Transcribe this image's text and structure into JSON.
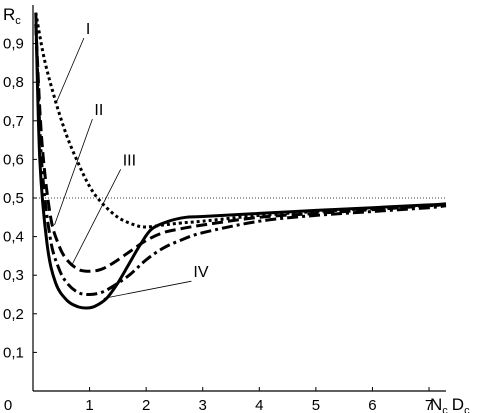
{
  "chart_data": {
    "type": "line",
    "ylabel_main": "R",
    "ylabel_sub": "c",
    "xlabel_parts": [
      {
        "main": "N",
        "sub": "c"
      },
      {
        "main": "D",
        "sub": "c"
      }
    ],
    "xlim": [
      0,
      7.3
    ],
    "ylim": [
      0,
      1.0
    ],
    "x_ticks": [
      {
        "value": 0,
        "label": "0"
      },
      {
        "value": 1,
        "label": "1"
      },
      {
        "value": 2,
        "label": "2"
      },
      {
        "value": 3,
        "label": "3"
      },
      {
        "value": 4,
        "label": "4"
      },
      {
        "value": 5,
        "label": "5"
      },
      {
        "value": 6,
        "label": "6"
      },
      {
        "value": 7,
        "label": "7"
      }
    ],
    "y_ticks": [
      {
        "value": 0.1,
        "label": "0,1"
      },
      {
        "value": 0.2,
        "label": "0,2"
      },
      {
        "value": 0.3,
        "label": "0,3"
      },
      {
        "value": 0.4,
        "label": "0,4"
      },
      {
        "value": 0.5,
        "label": "0,5"
      },
      {
        "value": 0.6,
        "label": "0,6"
      },
      {
        "value": 0.7,
        "label": "0,7"
      },
      {
        "value": 0.8,
        "label": "0,8"
      },
      {
        "value": 0.9,
        "label": "0,9"
      }
    ],
    "reference_line": {
      "y": 0.5,
      "style": "dotted"
    },
    "grid": false,
    "series": [
      {
        "name": "I",
        "dash": "dotted",
        "x": [
          0.05,
          0.2,
          0.4,
          0.6,
          0.8,
          1.0,
          1.2,
          1.5,
          1.8,
          2.0,
          2.3,
          2.6,
          3.0,
          4.0,
          5.0,
          6.0,
          7.0,
          7.3
        ],
        "y": [
          0.98,
          0.86,
          0.75,
          0.66,
          0.59,
          0.53,
          0.49,
          0.45,
          0.43,
          0.425,
          0.43,
          0.435,
          0.44,
          0.455,
          0.465,
          0.473,
          0.48,
          0.483
        ],
        "label_anchor": [
          0.42,
          0.75
        ],
        "label_pos": [
          0.9,
          0.93
        ]
      },
      {
        "name": "II",
        "dash": "dashed",
        "x": [
          0.05,
          0.15,
          0.3,
          0.45,
          0.6,
          0.8,
          1.0,
          1.2,
          1.4,
          1.7,
          2.0,
          2.3,
          2.6,
          3.0,
          4.0,
          5.0,
          6.0,
          7.0,
          7.3
        ],
        "y": [
          0.95,
          0.66,
          0.46,
          0.38,
          0.34,
          0.315,
          0.31,
          0.315,
          0.33,
          0.36,
          0.39,
          0.41,
          0.42,
          0.43,
          0.45,
          0.46,
          0.47,
          0.48,
          0.483
        ],
        "label_anchor": [
          0.38,
          0.43
        ],
        "label_pos": [
          1.05,
          0.72
        ]
      },
      {
        "name": "III",
        "dash": "dashdot",
        "x": [
          0.05,
          0.15,
          0.3,
          0.45,
          0.6,
          0.8,
          1.0,
          1.2,
          1.4,
          1.7,
          2.0,
          2.3,
          2.6,
          3.0,
          4.0,
          5.0,
          6.0,
          7.0,
          7.3
        ],
        "y": [
          0.95,
          0.6,
          0.4,
          0.32,
          0.28,
          0.255,
          0.25,
          0.255,
          0.27,
          0.3,
          0.34,
          0.37,
          0.39,
          0.41,
          0.44,
          0.455,
          0.465,
          0.475,
          0.48
        ],
        "label_anchor": [
          0.7,
          0.33
        ],
        "label_pos": [
          1.55,
          0.59
        ]
      },
      {
        "name": "IV",
        "dash": "solid",
        "x": [
          0.05,
          0.12,
          0.25,
          0.4,
          0.6,
          0.8,
          0.95,
          1.1,
          1.3,
          1.5,
          1.7,
          1.9,
          2.1,
          2.4,
          2.7,
          3.0,
          4.0,
          5.0,
          6.0,
          7.0,
          7.3
        ],
        "y": [
          0.98,
          0.6,
          0.38,
          0.28,
          0.235,
          0.218,
          0.215,
          0.22,
          0.24,
          0.28,
          0.33,
          0.38,
          0.42,
          0.44,
          0.45,
          0.452,
          0.46,
          0.468,
          0.475,
          0.482,
          0.485
        ],
        "label_anchor": [
          1.25,
          0.24
        ],
        "label_pos": [
          2.8,
          0.3
        ]
      }
    ]
  }
}
